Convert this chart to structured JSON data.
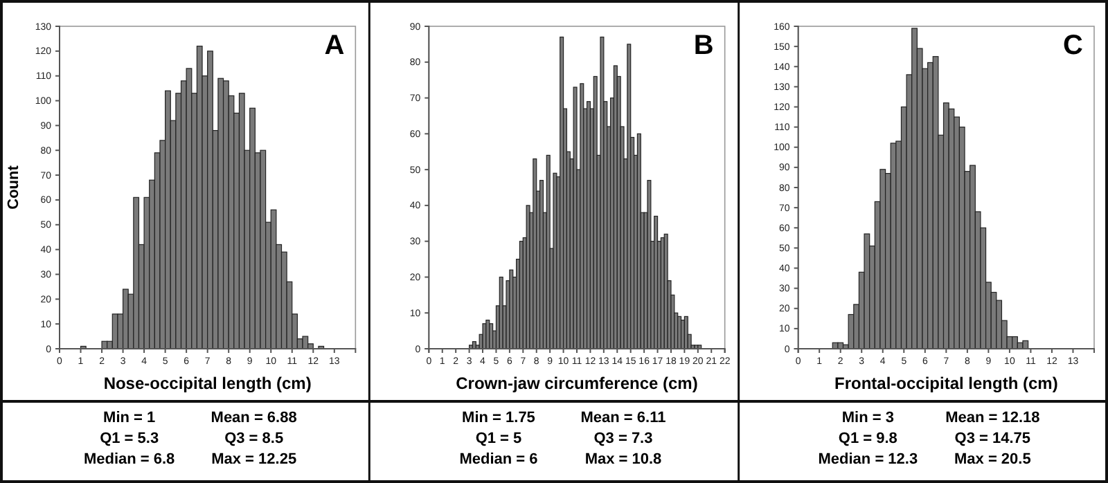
{
  "chart_data": [
    {
      "type": "histogram",
      "title": "A",
      "xlabel": "Nose-occipital length (cm)",
      "ylabel": "Count",
      "color": "#7a7a7a",
      "bins": [
        1,
        1.25,
        1.5,
        1.75,
        2,
        2.25,
        2.5,
        2.75,
        3,
        3.25,
        3.5,
        3.75,
        4,
        4.25,
        4.5,
        4.75,
        5,
        5.25,
        5.5,
        5.75,
        6,
        6.25,
        6.5,
        6.75,
        7,
        7.25,
        7.5,
        7.75,
        8,
        8.25,
        8.5,
        8.75,
        9,
        9.25,
        9.5,
        9.75,
        10,
        10.25,
        10.5,
        10.75,
        11,
        11.25,
        11.5,
        11.75,
        12,
        12.25,
        12.5
      ],
      "values": [
        1,
        0,
        0,
        0,
        3,
        3,
        14,
        14,
        24,
        22,
        61,
        42,
        61,
        68,
        79,
        84,
        104,
        92,
        103,
        108,
        113,
        103,
        122,
        110,
        120,
        88,
        109,
        108,
        102,
        95,
        103,
        80,
        97,
        79,
        80,
        51,
        56,
        42,
        39,
        27,
        14,
        4,
        5,
        2,
        0,
        1
      ],
      "xlim": [
        0,
        14
      ],
      "xticks": [
        0,
        1,
        2,
        3,
        4,
        5,
        6,
        7,
        8,
        9,
        10,
        11,
        12,
        13
      ],
      "ylim": [
        0,
        130
      ],
      "yticks": [
        0,
        10,
        20,
        30,
        40,
        50,
        60,
        70,
        80,
        90,
        100,
        110,
        120,
        130
      ],
      "grid": false,
      "annotations": [
        "Min = 1",
        "Mean = 6.88",
        "Q1 = 5.3",
        "Q3 = 8.5",
        "Median = 6.8",
        "Max = 12.25"
      ]
    },
    {
      "type": "histogram",
      "title": "B",
      "xlabel": "Crown-jaw circumference (cm)",
      "color": "#7a7a7a",
      "bins": [
        3,
        3.25,
        3.5,
        3.75,
        4,
        4.25,
        4.5,
        4.75,
        5,
        5.25,
        5.5,
        5.75,
        6,
        6.25,
        6.5,
        6.75,
        7,
        7.25,
        7.5,
        7.75,
        8,
        8.25,
        8.5,
        8.75,
        9,
        9.25,
        9.5,
        9.75,
        10,
        10.25,
        10.5,
        10.75,
        11,
        11.25,
        11.5,
        11.75,
        12,
        12.25,
        12.5,
        12.75,
        13,
        13.25,
        13.5,
        13.75,
        14,
        14.25,
        14.5,
        14.75,
        15,
        15.25,
        15.5,
        15.75,
        16,
        16.25,
        16.5,
        16.75,
        17,
        17.25,
        17.5,
        17.75,
        18,
        18.25,
        18.5,
        18.75,
        19,
        19.25,
        19.5,
        19.75,
        20,
        20.25
      ],
      "values": [
        1,
        2,
        1,
        4,
        7,
        8,
        7,
        5,
        12,
        20,
        12,
        19,
        22,
        20,
        25,
        30,
        31,
        40,
        38,
        53,
        44,
        47,
        38,
        54,
        28,
        49,
        48,
        87,
        67,
        55,
        53,
        73,
        50,
        74,
        67,
        69,
        67,
        76,
        54,
        87,
        69,
        62,
        70,
        79,
        76,
        62,
        53,
        85,
        59,
        54,
        60,
        38,
        38,
        47,
        30,
        37,
        30,
        31,
        32,
        19,
        15,
        10,
        9,
        8,
        9,
        4,
        1,
        1,
        1
      ],
      "xlim": [
        0,
        22
      ],
      "xticks": [
        0,
        1,
        2,
        3,
        4,
        5,
        6,
        7,
        8,
        9,
        10,
        11,
        12,
        13,
        14,
        15,
        16,
        17,
        18,
        19,
        20,
        21,
        22
      ],
      "ylim": [
        0,
        90
      ],
      "yticks": [
        0,
        10,
        20,
        30,
        40,
        50,
        60,
        70,
        80,
        90
      ],
      "grid": false,
      "annotations": [
        "Min = 1.75",
        "Mean = 6.11",
        "Q1 = 5",
        "Q3 = 7.3",
        "Median = 6",
        "Max = 10.8"
      ]
    },
    {
      "type": "histogram",
      "title": "C",
      "xlabel": "Frontal-occipital length (cm)",
      "color": "#7a7a7a",
      "bins": [
        1.625,
        1.875,
        2.125,
        2.375,
        2.625,
        2.875,
        3.125,
        3.375,
        3.625,
        3.875,
        4.125,
        4.375,
        4.625,
        4.875,
        5.125,
        5.375,
        5.625,
        5.875,
        6.125,
        6.375,
        6.625,
        6.875,
        7.125,
        7.375,
        7.625,
        7.875,
        8.125,
        8.375,
        8.625,
        8.875,
        9.125,
        9.375,
        9.625,
        9.875,
        10.125,
        10.375,
        10.625,
        10.875
      ],
      "values": [
        3,
        3,
        2,
        17,
        22,
        38,
        57,
        51,
        73,
        89,
        87,
        102,
        103,
        120,
        136,
        159,
        149,
        139,
        142,
        145,
        106,
        122,
        119,
        115,
        110,
        88,
        91,
        68,
        60,
        33,
        28,
        24,
        14,
        6,
        6,
        3,
        4
      ],
      "xlim": [
        0,
        14
      ],
      "xticks": [
        0,
        1,
        2,
        3,
        4,
        5,
        6,
        7,
        8,
        9,
        10,
        11,
        12,
        13
      ],
      "ylim": [
        0,
        160
      ],
      "yticks": [
        0,
        10,
        20,
        30,
        40,
        50,
        60,
        70,
        80,
        90,
        100,
        110,
        120,
        130,
        140,
        150,
        160
      ],
      "grid": false,
      "annotations": [
        "Min = 3",
        "Mean = 12.18",
        "Q1 = 9.8",
        "Q3 = 14.75",
        "Median = 12.3",
        "Max = 20.5"
      ]
    }
  ]
}
